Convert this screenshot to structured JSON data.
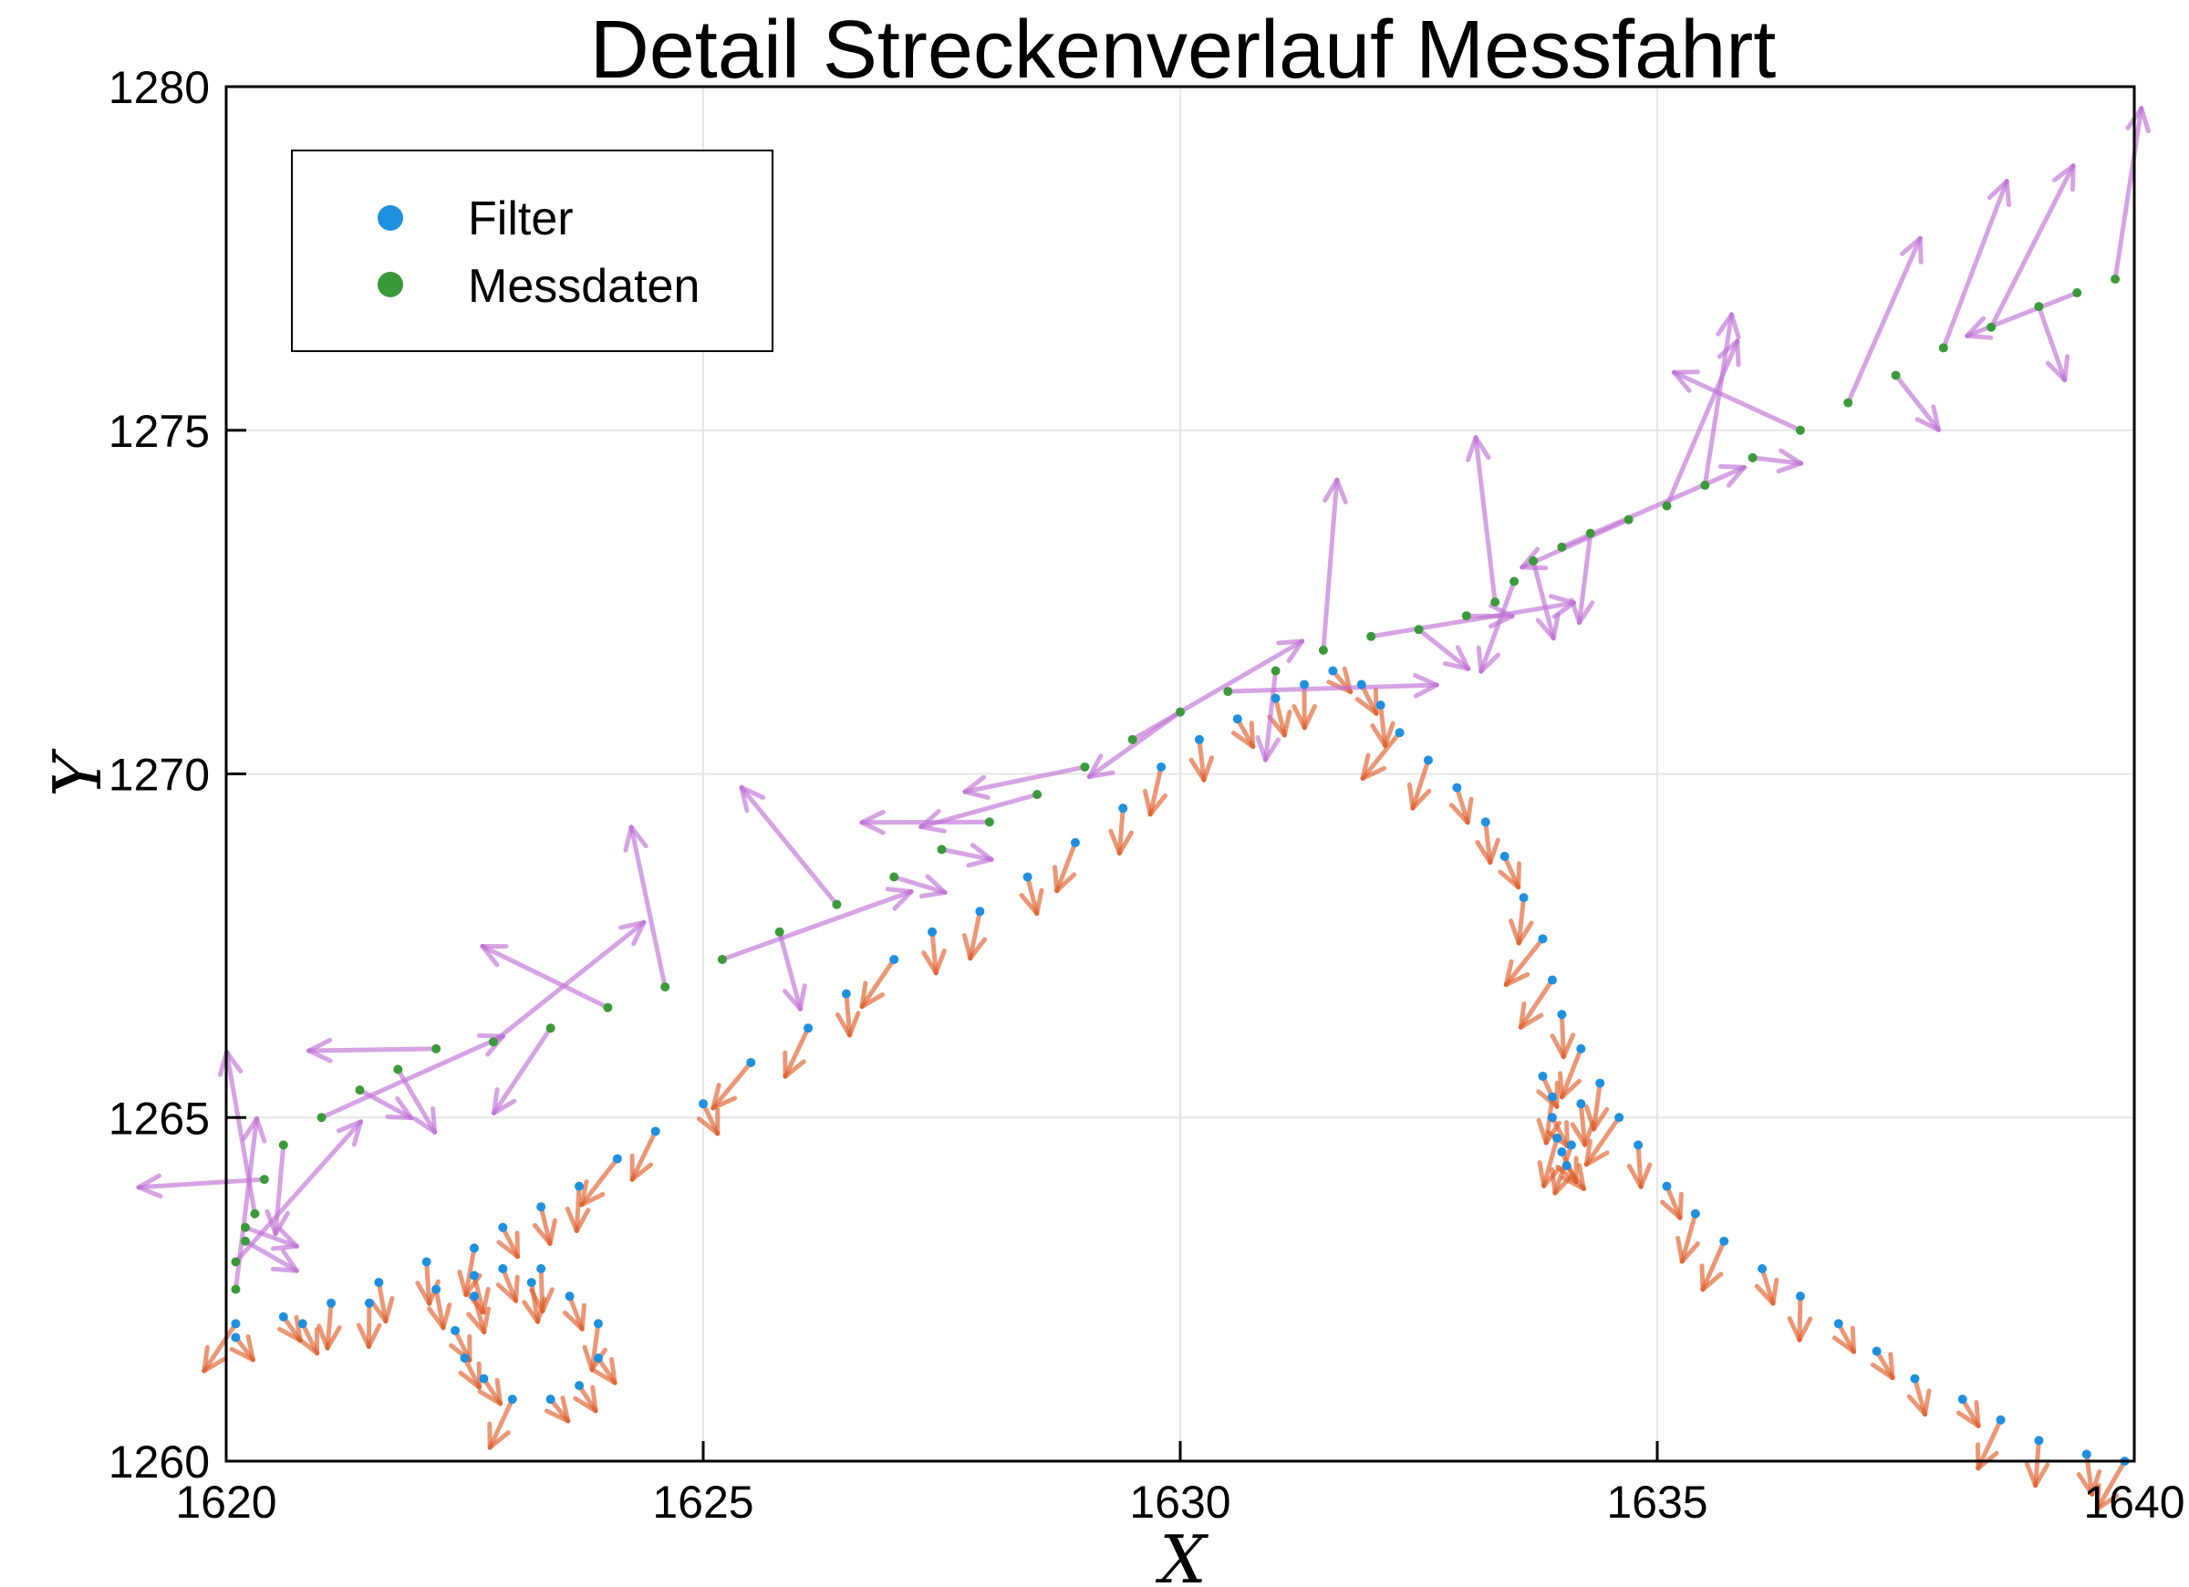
{
  "chart_data": {
    "type": "scatter",
    "title": "Detail Streckenverlauf Messfahrt",
    "xlabel": "X",
    "ylabel": "Y",
    "xlim": [
      1620,
      1640
    ],
    "ylim": [
      1260,
      1280
    ],
    "xticks": [
      1620,
      1625,
      1630,
      1635,
      1640
    ],
    "yticks": [
      1260,
      1265,
      1270,
      1275,
      1280
    ],
    "grid": true,
    "legend_position": "top-left",
    "series": [
      {
        "name": "Filter",
        "color": "#1f8fe0",
        "arrow_color": "#e0602c",
        "x": [
          1620.1,
          1620.6,
          1621.1,
          1621.6,
          1622.1,
          1622.6,
          1622.9,
          1623.3,
          1623.7,
          1624.1,
          1624.5,
          1625.0,
          1625.5,
          1626.1,
          1626.5,
          1627.0,
          1627.4,
          1627.9,
          1628.4,
          1628.9,
          1629.4,
          1629.8,
          1630.2,
          1630.6,
          1631.0,
          1631.3,
          1631.6,
          1631.9,
          1632.1,
          1632.3,
          1632.6,
          1632.9,
          1633.2,
          1633.4,
          1633.6,
          1633.8,
          1633.9,
          1634.0,
          1634.2,
          1634.4,
          1634.6,
          1634.8,
          1635.1,
          1635.4,
          1635.7,
          1636.1,
          1636.5,
          1636.9,
          1637.3,
          1637.7,
          1638.2,
          1638.6,
          1639.0,
          1639.5,
          1639.9,
          1623.3,
          1622.9,
          1622.6,
          1622.4,
          1622.5,
          1622.7,
          1623.0,
          1623.4,
          1623.7,
          1623.9,
          1623.9,
          1623.6,
          1623.2,
          1622.6,
          1622.2,
          1621.5,
          1620.8,
          1620.1,
          1633.8,
          1633.9,
          1633.9,
          1633.95,
          1634.0,
          1634.05,
          1634.1,
          1634.2
        ],
        "y": [
          1262.0,
          1262.1,
          1262.3,
          1262.6,
          1262.9,
          1263.1,
          1263.4,
          1263.7,
          1264.0,
          1264.4,
          1264.8,
          1265.2,
          1265.8,
          1266.3,
          1266.8,
          1267.3,
          1267.7,
          1268.0,
          1268.5,
          1269.0,
          1269.5,
          1270.1,
          1270.5,
          1270.8,
          1271.1,
          1271.3,
          1271.5,
          1271.3,
          1271.0,
          1270.6,
          1270.2,
          1269.8,
          1269.3,
          1268.8,
          1268.2,
          1267.6,
          1267.0,
          1266.5,
          1266.0,
          1265.5,
          1265.0,
          1264.6,
          1264.0,
          1263.6,
          1263.2,
          1262.8,
          1262.4,
          1262.0,
          1261.6,
          1261.2,
          1260.9,
          1260.6,
          1260.3,
          1260.1,
          1260.0,
          1262.8,
          1262.8,
          1262.4,
          1261.9,
          1261.5,
          1261.2,
          1260.9,
          1260.9,
          1261.1,
          1261.5,
          1262.0,
          1262.4,
          1262.6,
          1262.7,
          1262.5,
          1262.3,
          1262.0,
          1261.8,
          1265.6,
          1265.3,
          1265.0,
          1264.7,
          1264.5,
          1264.3,
          1264.6,
          1265.2
        ]
      },
      {
        "name": "Messdaten",
        "color": "#3a9a3a",
        "arrow_color": "#c071d6",
        "x": [
          1620.2,
          1620.4,
          1620.6,
          1621.0,
          1621.4,
          1621.8,
          1622.2,
          1622.8,
          1623.4,
          1624.0,
          1624.6,
          1625.2,
          1625.8,
          1626.4,
          1627.0,
          1627.5,
          1628.0,
          1628.5,
          1629.0,
          1629.5,
          1630.0,
          1630.5,
          1631.0,
          1631.5,
          1632.0,
          1632.5,
          1633.0,
          1633.3,
          1633.5,
          1633.7,
          1634.0,
          1634.3,
          1634.7,
          1635.1,
          1635.5,
          1636.0,
          1636.5,
          1637.0,
          1637.5,
          1638.0,
          1638.5,
          1639.0,
          1639.4,
          1639.8,
          1620.1,
          1620.1,
          1620.2,
          1620.3
        ],
        "y": [
          1263.4,
          1264.1,
          1264.6,
          1265.0,
          1265.4,
          1265.7,
          1266.0,
          1266.1,
          1266.3,
          1266.6,
          1266.9,
          1267.3,
          1267.7,
          1268.1,
          1268.5,
          1268.9,
          1269.3,
          1269.7,
          1270.1,
          1270.5,
          1270.9,
          1271.2,
          1271.5,
          1271.8,
          1272.0,
          1272.1,
          1272.3,
          1272.5,
          1272.8,
          1273.1,
          1273.3,
          1273.5,
          1273.7,
          1273.9,
          1274.2,
          1274.6,
          1275.0,
          1275.4,
          1275.8,
          1276.2,
          1276.5,
          1276.8,
          1277.0,
          1277.2,
          1262.5,
          1262.9,
          1263.2,
          1263.6
        ]
      }
    ]
  }
}
